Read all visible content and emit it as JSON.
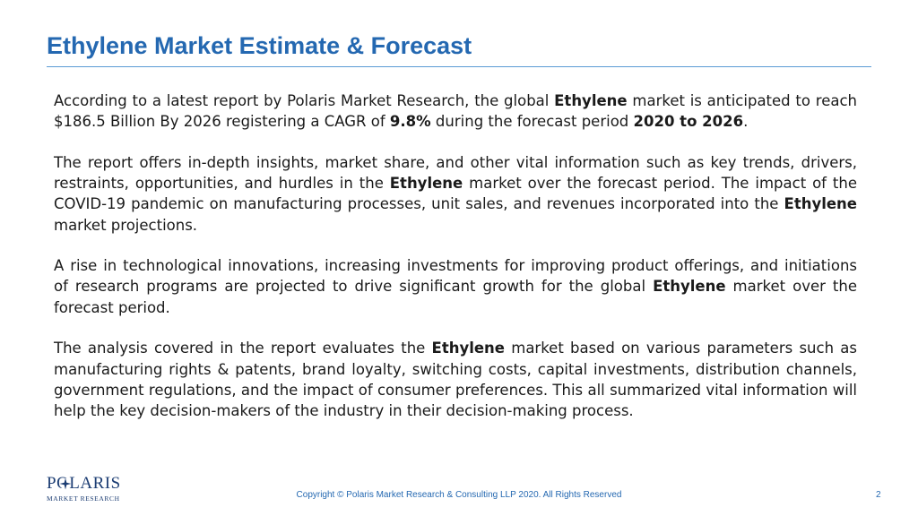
{
  "slide": {
    "title": "Ethylene Market Estimate & Forecast",
    "paragraphs": [
      [
        {
          "t": "According to a latest report by Polaris Market Research, the global "
        },
        {
          "t": "Ethylene",
          "b": true
        },
        {
          "t": " market is anticipated to reach $186.5 Billion By 2026  registering a CAGR of "
        },
        {
          "t": "9.8%",
          "b": true
        },
        {
          "t": " during the  forecast period "
        },
        {
          "t": "2020 to 2026",
          "b": true
        },
        {
          "t": "."
        }
      ],
      [
        {
          "t": "The report offers in-depth insights, market share, and other vital information such as key trends, drivers, restraints, opportunities, and hurdles in the "
        },
        {
          "t": "Ethylene",
          "b": true
        },
        {
          "t": " market over the forecast period. The impact of the COVID-19 pandemic on manufacturing processes, unit sales, and revenues incorporated into the  "
        },
        {
          "t": "Ethylene",
          "b": true
        },
        {
          "t": " market projections."
        }
      ],
      [
        {
          "t": "A rise in technological innovations, increasing investments for improving product offerings, and initiations of research programs are projected to drive significant growth for the global "
        },
        {
          "t": "Ethylene",
          "b": true
        },
        {
          "t": " market over the forecast period."
        }
      ],
      [
        {
          "t": "The analysis covered in the report evaluates the "
        },
        {
          "t": "Ethylene",
          "b": true
        },
        {
          "t": " market based on various parameters such as manufacturing rights & patents, brand loyalty, switching costs,  capital investments, distribution channels, government regulations, and the impact of consumer preferences. This all summarized vital information will help the key decision-makers of the industry in their decision-making process."
        }
      ]
    ]
  },
  "logo": {
    "name": "POLARIS",
    "subtitle": "MARKET RESEARCH",
    "icon": "star-icon"
  },
  "footer": {
    "copyright": "Copyright © Polaris Market Research & Consulting LLP 2020. All Rights Reserved",
    "page_number": "2"
  },
  "colors": {
    "title": "#2468b1",
    "rule": "#5b9bd5",
    "logo": "#1c3d73",
    "body_text": "#1a1a1a"
  }
}
